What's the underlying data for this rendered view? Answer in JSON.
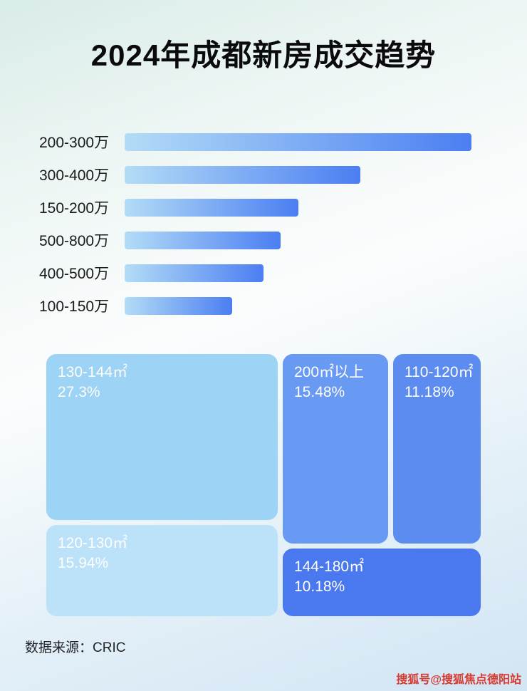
{
  "page": {
    "title": "2024年成都新房成交趋势",
    "source_label": "数据来源：CRIC",
    "watermark": "搜狐号@搜狐焦点德阳站"
  },
  "colors": {
    "bar_gradient_start": "#b3dcf6",
    "bar_gradient_end": "#4b7ef2",
    "watermark_color": "#d93a30",
    "treemap_text": "#ffffff"
  },
  "chart_data": [
    {
      "type": "bar",
      "orientation": "horizontal",
      "title": "2024年成都新房成交趋势",
      "categories": [
        "200-300万",
        "300-400万",
        "150-200万",
        "500-800万",
        "400-500万",
        "100-150万"
      ],
      "values_relative": [
        100,
        68,
        50,
        45,
        40,
        31
      ],
      "value_note": "条形未标注数值，长度按最长条=100归一化估读",
      "xlabel": "",
      "ylabel": "",
      "grid": false,
      "legend": false
    },
    {
      "type": "treemap",
      "title": "",
      "blocks": [
        {
          "label": "130-144㎡",
          "value_pct": 27.3,
          "display": "27.3%",
          "color": "#9dd3f4"
        },
        {
          "label": "200㎡以上",
          "value_pct": 15.48,
          "display": "15.48%",
          "color": "#6899f3"
        },
        {
          "label": "110-120㎡",
          "value_pct": 11.18,
          "display": "11.18%",
          "color": "#5d8cf1"
        },
        {
          "label": "120-130㎡",
          "value_pct": 15.94,
          "display": "15.94%",
          "color": "#bce2f9"
        },
        {
          "label": "144-180㎡",
          "value_pct": 10.18,
          "display": "10.18%",
          "color": "#4a78ee"
        }
      ],
      "legend": false
    }
  ]
}
